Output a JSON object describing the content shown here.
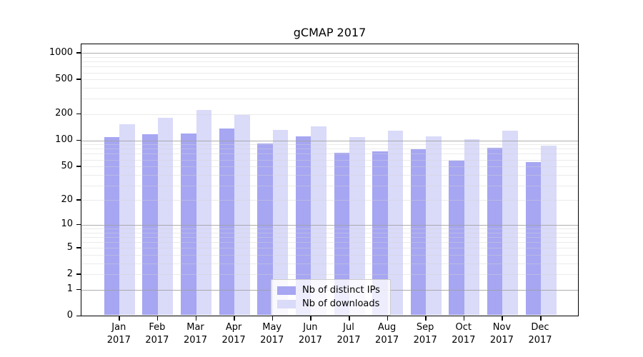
{
  "title": "gCMAP 2017",
  "chart_data": {
    "type": "bar",
    "title": "gCMAP 2017",
    "categories": [
      "Jan",
      "Feb",
      "Mar",
      "Apr",
      "May",
      "Jun",
      "Jul",
      "Aug",
      "Sep",
      "Oct",
      "Nov",
      "Dec"
    ],
    "category_year": "2017",
    "series": [
      {
        "name": "Nb of distinct IPs",
        "color": "#a6a6f2",
        "values": [
          105,
          114,
          117,
          133,
          89,
          108,
          69,
          73,
          77,
          57,
          80,
          54
        ]
      },
      {
        "name": "Nb of downloads",
        "color": "#dadaf9",
        "values": [
          148,
          176,
          215,
          190,
          128,
          140,
          105,
          125,
          107,
          99,
          125,
          84
        ]
      }
    ],
    "xlabel": "",
    "ylabel": "",
    "yscale": "log1p",
    "yticks": [
      0,
      1,
      2,
      5,
      10,
      20,
      50,
      100,
      200,
      500,
      1000
    ],
    "major_grid_values": [
      1,
      10,
      100,
      1000
    ],
    "ylim": [
      0,
      1258
    ],
    "grid": true,
    "legend_position": "lower center"
  },
  "colors": {
    "bar_dark": "#a6a6f2",
    "bar_light": "#dadaf9",
    "grid_major": "#a0a0a0",
    "grid_minor": "#e2e2e2",
    "axis": "#000000"
  }
}
